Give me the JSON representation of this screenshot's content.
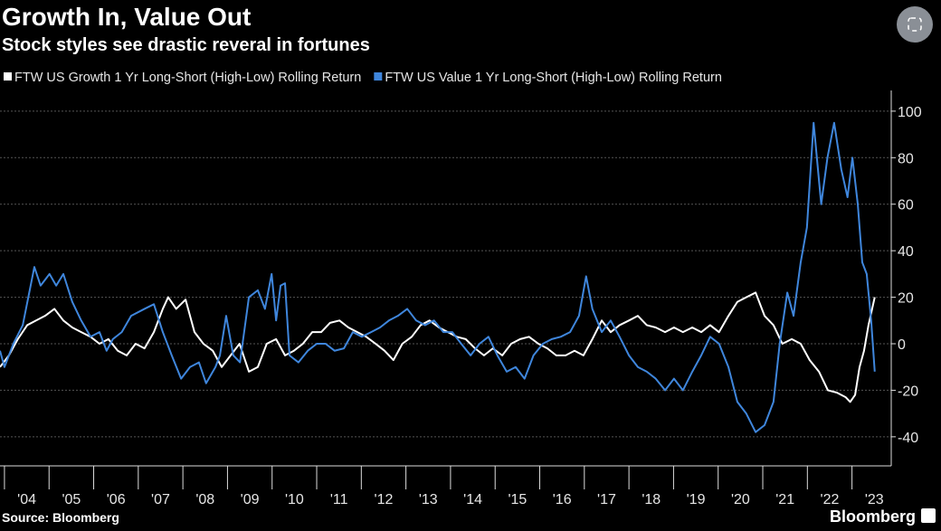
{
  "chart_data": {
    "type": "line",
    "title": "Growth In, Value Out",
    "subtitle": "Stock styles see drastic reveral in fortunes",
    "source": "Source: Bloomberg",
    "brand": "Bloomberg",
    "xlim": [
      2003.9,
      2023.88
    ],
    "ylim": [
      -52.5,
      108.9
    ],
    "yticks": [
      -40,
      -20,
      0,
      20,
      40,
      60,
      80,
      100
    ],
    "xticks": [
      {
        "value": 2004,
        "label": "'04"
      },
      {
        "value": 2005,
        "label": "'05"
      },
      {
        "value": 2006,
        "label": "'06"
      },
      {
        "value": 2007,
        "label": "'07"
      },
      {
        "value": 2008,
        "label": "'08"
      },
      {
        "value": 2009,
        "label": "'09"
      },
      {
        "value": 2010,
        "label": "'10"
      },
      {
        "value": 2011,
        "label": "'11"
      },
      {
        "value": 2012,
        "label": "'12"
      },
      {
        "value": 2013,
        "label": "'13"
      },
      {
        "value": 2014,
        "label": "'14"
      },
      {
        "value": 2015,
        "label": "'15"
      },
      {
        "value": 2016,
        "label": "'16"
      },
      {
        "value": 2017,
        "label": "'17"
      },
      {
        "value": 2018,
        "label": "'18"
      },
      {
        "value": 2019,
        "label": "'19"
      },
      {
        "value": 2020,
        "label": "'20"
      },
      {
        "value": 2021,
        "label": "'21"
      },
      {
        "value": 2022,
        "label": "'22"
      },
      {
        "value": 2023,
        "label": "'23"
      }
    ],
    "grid": true,
    "series": [
      {
        "name": "FTW US Growth 1 Yr Long-Short (High-Low) Rolling Return",
        "color": "#ffffff",
        "x": [
          2003.9,
          2004.1,
          2004.3,
          2004.51,
          2004.71,
          2004.91,
          2005.12,
          2005.32,
          2005.52,
          2005.72,
          2005.93,
          2006.13,
          2006.33,
          2006.54,
          2006.74,
          2006.94,
          2007.14,
          2007.35,
          2007.55,
          2007.67,
          2007.85,
          2008.06,
          2008.26,
          2008.46,
          2008.67,
          2008.87,
          2009.07,
          2009.27,
          2009.48,
          2009.68,
          2009.88,
          2010.09,
          2010.29,
          2010.49,
          2010.69,
          2010.9,
          2011.1,
          2011.3,
          2011.51,
          2011.71,
          2011.91,
          2012.11,
          2012.32,
          2012.52,
          2012.72,
          2012.92,
          2013.13,
          2013.33,
          2013.53,
          2013.74,
          2013.94,
          2014.14,
          2014.34,
          2014.55,
          2014.75,
          2014.95,
          2015.16,
          2015.36,
          2015.56,
          2015.76,
          2015.97,
          2016.17,
          2016.37,
          2016.58,
          2016.78,
          2016.98,
          2017.18,
          2017.39,
          2017.59,
          2017.79,
          2018.0,
          2018.2,
          2018.4,
          2018.6,
          2018.81,
          2019.01,
          2019.21,
          2019.42,
          2019.62,
          2019.82,
          2020.02,
          2020.23,
          2020.43,
          2020.63,
          2020.84,
          2021.04,
          2021.24,
          2021.44,
          2021.65,
          2021.85,
          2022.05,
          2022.26,
          2022.46,
          2022.66,
          2022.86,
          2022.96,
          2023.07,
          2023.17,
          2023.27,
          2023.37,
          2023.51
        ],
        "values": [
          -10,
          -5,
          2,
          8,
          10,
          12,
          15,
          10,
          7,
          5,
          3,
          0,
          2,
          -3,
          -5,
          0,
          -2,
          5,
          15,
          20,
          15,
          19,
          5,
          0,
          -3,
          -10,
          -5,
          0,
          -12,
          -10,
          0,
          2,
          -5,
          -3,
          0,
          5,
          5,
          9,
          10,
          7,
          5,
          3,
          0,
          -3,
          -7,
          0,
          3,
          8,
          10,
          7,
          5,
          3,
          2,
          -2,
          -5,
          -2,
          -5,
          0,
          2,
          3,
          0,
          -2,
          -5,
          -5,
          -3,
          -5,
          2,
          10,
          5,
          8,
          10,
          12,
          8,
          7,
          5,
          7,
          5,
          7,
          5,
          8,
          5,
          12,
          18,
          20,
          22,
          12,
          8,
          0,
          2,
          0,
          -7,
          -12,
          -20,
          -21,
          -23,
          -25,
          -22,
          -10,
          -3,
          8,
          20
        ]
      },
      {
        "name": "FTW US Value 1 Yr Long-Short (High-Low) Rolling Return",
        "color": "#3f86dc",
        "x": [
          2003.9,
          2004.0,
          2004.2,
          2004.41,
          2004.67,
          2004.81,
          2005.01,
          2005.16,
          2005.32,
          2005.52,
          2005.72,
          2005.93,
          2006.13,
          2006.29,
          2006.43,
          2006.63,
          2006.84,
          2007.14,
          2007.35,
          2007.55,
          2007.75,
          2007.96,
          2008.16,
          2008.36,
          2008.52,
          2008.73,
          2008.83,
          2008.97,
          2009.13,
          2009.28,
          2009.48,
          2009.68,
          2009.84,
          2009.99,
          2010.09,
          2010.19,
          2010.29,
          2010.39,
          2010.59,
          2010.8,
          2011.0,
          2011.2,
          2011.4,
          2011.61,
          2011.81,
          2012.01,
          2012.22,
          2012.42,
          2012.62,
          2012.82,
          2013.03,
          2013.23,
          2013.43,
          2013.63,
          2013.84,
          2014.04,
          2014.24,
          2014.45,
          2014.65,
          2014.85,
          2015.05,
          2015.26,
          2015.46,
          2015.66,
          2015.86,
          2016.07,
          2016.27,
          2016.47,
          2016.68,
          2016.88,
          2017.04,
          2017.18,
          2017.39,
          2017.59,
          2017.79,
          2018.0,
          2018.2,
          2018.4,
          2018.6,
          2018.81,
          2019.01,
          2019.21,
          2019.42,
          2019.62,
          2019.82,
          2020.02,
          2020.23,
          2020.43,
          2020.63,
          2020.84,
          2021.04,
          2021.24,
          2021.38,
          2021.55,
          2021.69,
          2021.85,
          2021.99,
          2022.14,
          2022.31,
          2022.45,
          2022.6,
          2022.76,
          2022.9,
          2023.01,
          2023.13,
          2023.23,
          2023.33,
          2023.43,
          2023.51
        ],
        "values": [
          -3,
          -10,
          0,
          8,
          33,
          25,
          30,
          25,
          30,
          18,
          10,
          3,
          5,
          -3,
          2,
          5,
          12,
          15,
          17,
          5,
          -5,
          -15,
          -10,
          -8,
          -17,
          -10,
          -5,
          12,
          -5,
          -8,
          20,
          23,
          15,
          30,
          10,
          25,
          26,
          -5,
          -8,
          -3,
          0,
          0,
          -3,
          -2,
          5,
          3,
          5,
          7,
          10,
          12,
          15,
          10,
          8,
          10,
          5,
          5,
          0,
          -5,
          0,
          3,
          -5,
          -12,
          -10,
          -15,
          -5,
          0,
          2,
          3,
          5,
          12,
          29,
          15,
          5,
          10,
          3,
          -5,
          -10,
          -12,
          -15,
          -20,
          -15,
          -20,
          -12,
          -5,
          3,
          0,
          -10,
          -25,
          -30,
          -38,
          -35,
          -25,
          0,
          22,
          12,
          35,
          50,
          95,
          60,
          80,
          95,
          75,
          63,
          80,
          60,
          35,
          30,
          10,
          -12
        ]
      }
    ]
  }
}
